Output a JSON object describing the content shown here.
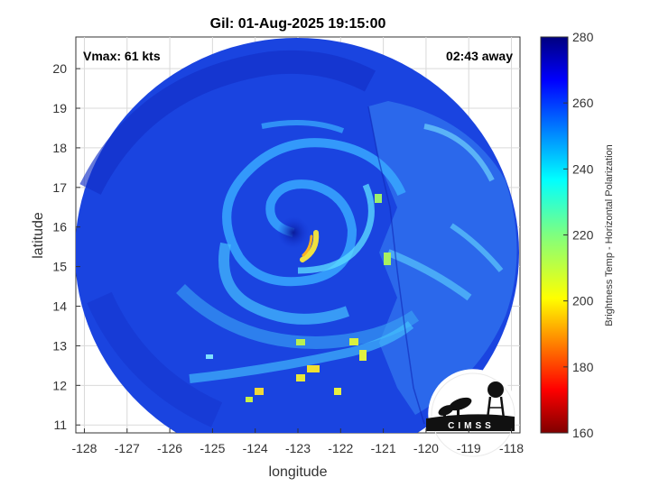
{
  "title": "Gil: 01-Aug-2025 19:15:00",
  "overlay": {
    "vmax": "Vmax: 61 kts",
    "time_away": "02:43 away"
  },
  "logo_text": "CIMSS",
  "axes": {
    "xlabel": "longitude",
    "ylabel": "latitude",
    "xlim": [
      -128.2,
      -117.8
    ],
    "ylim": [
      10.8,
      20.8
    ],
    "xticks": [
      -128,
      -127,
      -126,
      -125,
      -124,
      -123,
      -122,
      -121,
      -120,
      -119,
      -118
    ],
    "yticks": [
      11,
      12,
      13,
      14,
      15,
      16,
      17,
      18,
      19,
      20
    ],
    "grid": true
  },
  "colorbar": {
    "label": "Brightness Temp - Horizontal Polarization",
    "min": 160,
    "max": 280,
    "ticks": [
      160,
      180,
      200,
      220,
      240,
      260,
      280
    ]
  },
  "storm": {
    "center_lon": -122.9,
    "center_lat": 16.0,
    "swath_radius_deg": 5.2
  }
}
